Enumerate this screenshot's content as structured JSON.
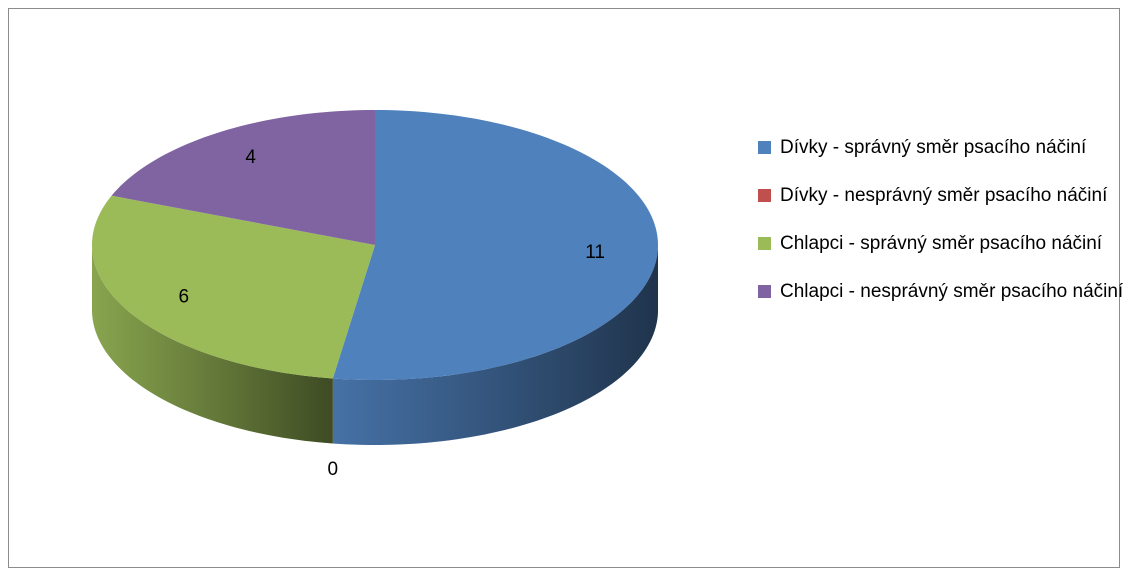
{
  "chart_data": {
    "type": "pie",
    "categories": [
      "Dívky - správný směr psacího náčiní",
      "Dívky - nesprávný směr psacího náčiní",
      "Chlapci - správný směr psacího náčiní",
      "Chlapci - nesprávný směr psacího náčiní"
    ],
    "values": [
      11,
      0,
      6,
      4
    ],
    "colors": [
      "#4f81bd",
      "#c0504d",
      "#9bbb59",
      "#8064a2"
    ],
    "legend": "right"
  }
}
